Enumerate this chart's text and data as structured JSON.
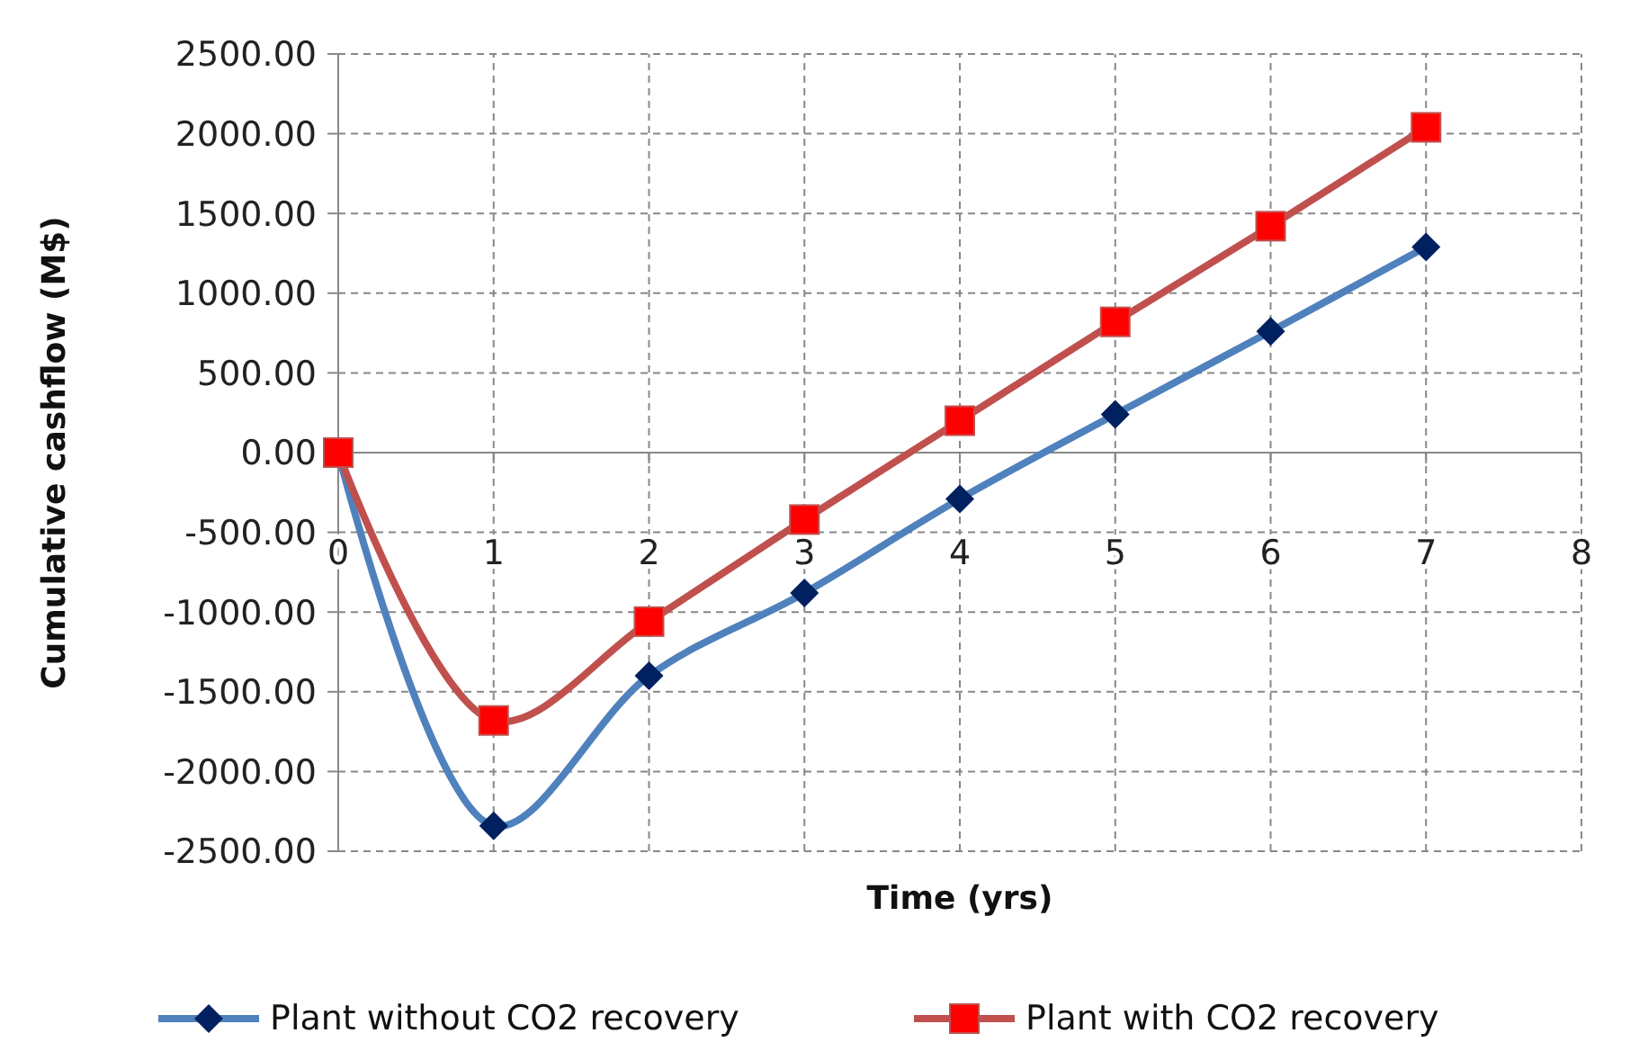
{
  "chart_data": {
    "type": "line",
    "xlabel": "Time (yrs)",
    "ylabel": "Cumulative cashflow (M$)",
    "x": [
      0,
      1,
      2,
      3,
      4,
      5,
      6,
      7
    ],
    "series": [
      {
        "name": "Plant without CO2 recovery",
        "color": "#4f81bd",
        "marker": "diamond",
        "values": [
          0,
          -2340,
          -1400,
          -880,
          -290,
          240,
          760,
          1290
        ]
      },
      {
        "name": "Plant with CO2 recovery",
        "color": "#c0504d",
        "marker": "square",
        "values": [
          0,
          -1680,
          -1060,
          -420,
          200,
          820,
          1420,
          2040
        ]
      }
    ],
    "xlim": [
      0,
      8
    ],
    "xticks": [
      0,
      1,
      2,
      3,
      4,
      5,
      6,
      7,
      8
    ],
    "ylim": [
      -2500,
      2500
    ],
    "yticks": [
      {
        "value": -2500,
        "label": "-2500.00"
      },
      {
        "value": -2000,
        "label": "-2000.00"
      },
      {
        "value": -1500,
        "label": "-1500.00"
      },
      {
        "value": -1000,
        "label": "-1000.00"
      },
      {
        "value": -500,
        "label": "-500.00"
      },
      {
        "value": 0,
        "label": "0.00"
      },
      {
        "value": 500,
        "label": "500.00"
      },
      {
        "value": 1000,
        "label": "1000.00"
      },
      {
        "value": 1500,
        "label": "1500.00"
      },
      {
        "value": 2000,
        "label": "2000.00"
      },
      {
        "value": 2500,
        "label": "2500.00"
      }
    ],
    "grid": true,
    "legend": "bottom",
    "line_style": "solid"
  }
}
